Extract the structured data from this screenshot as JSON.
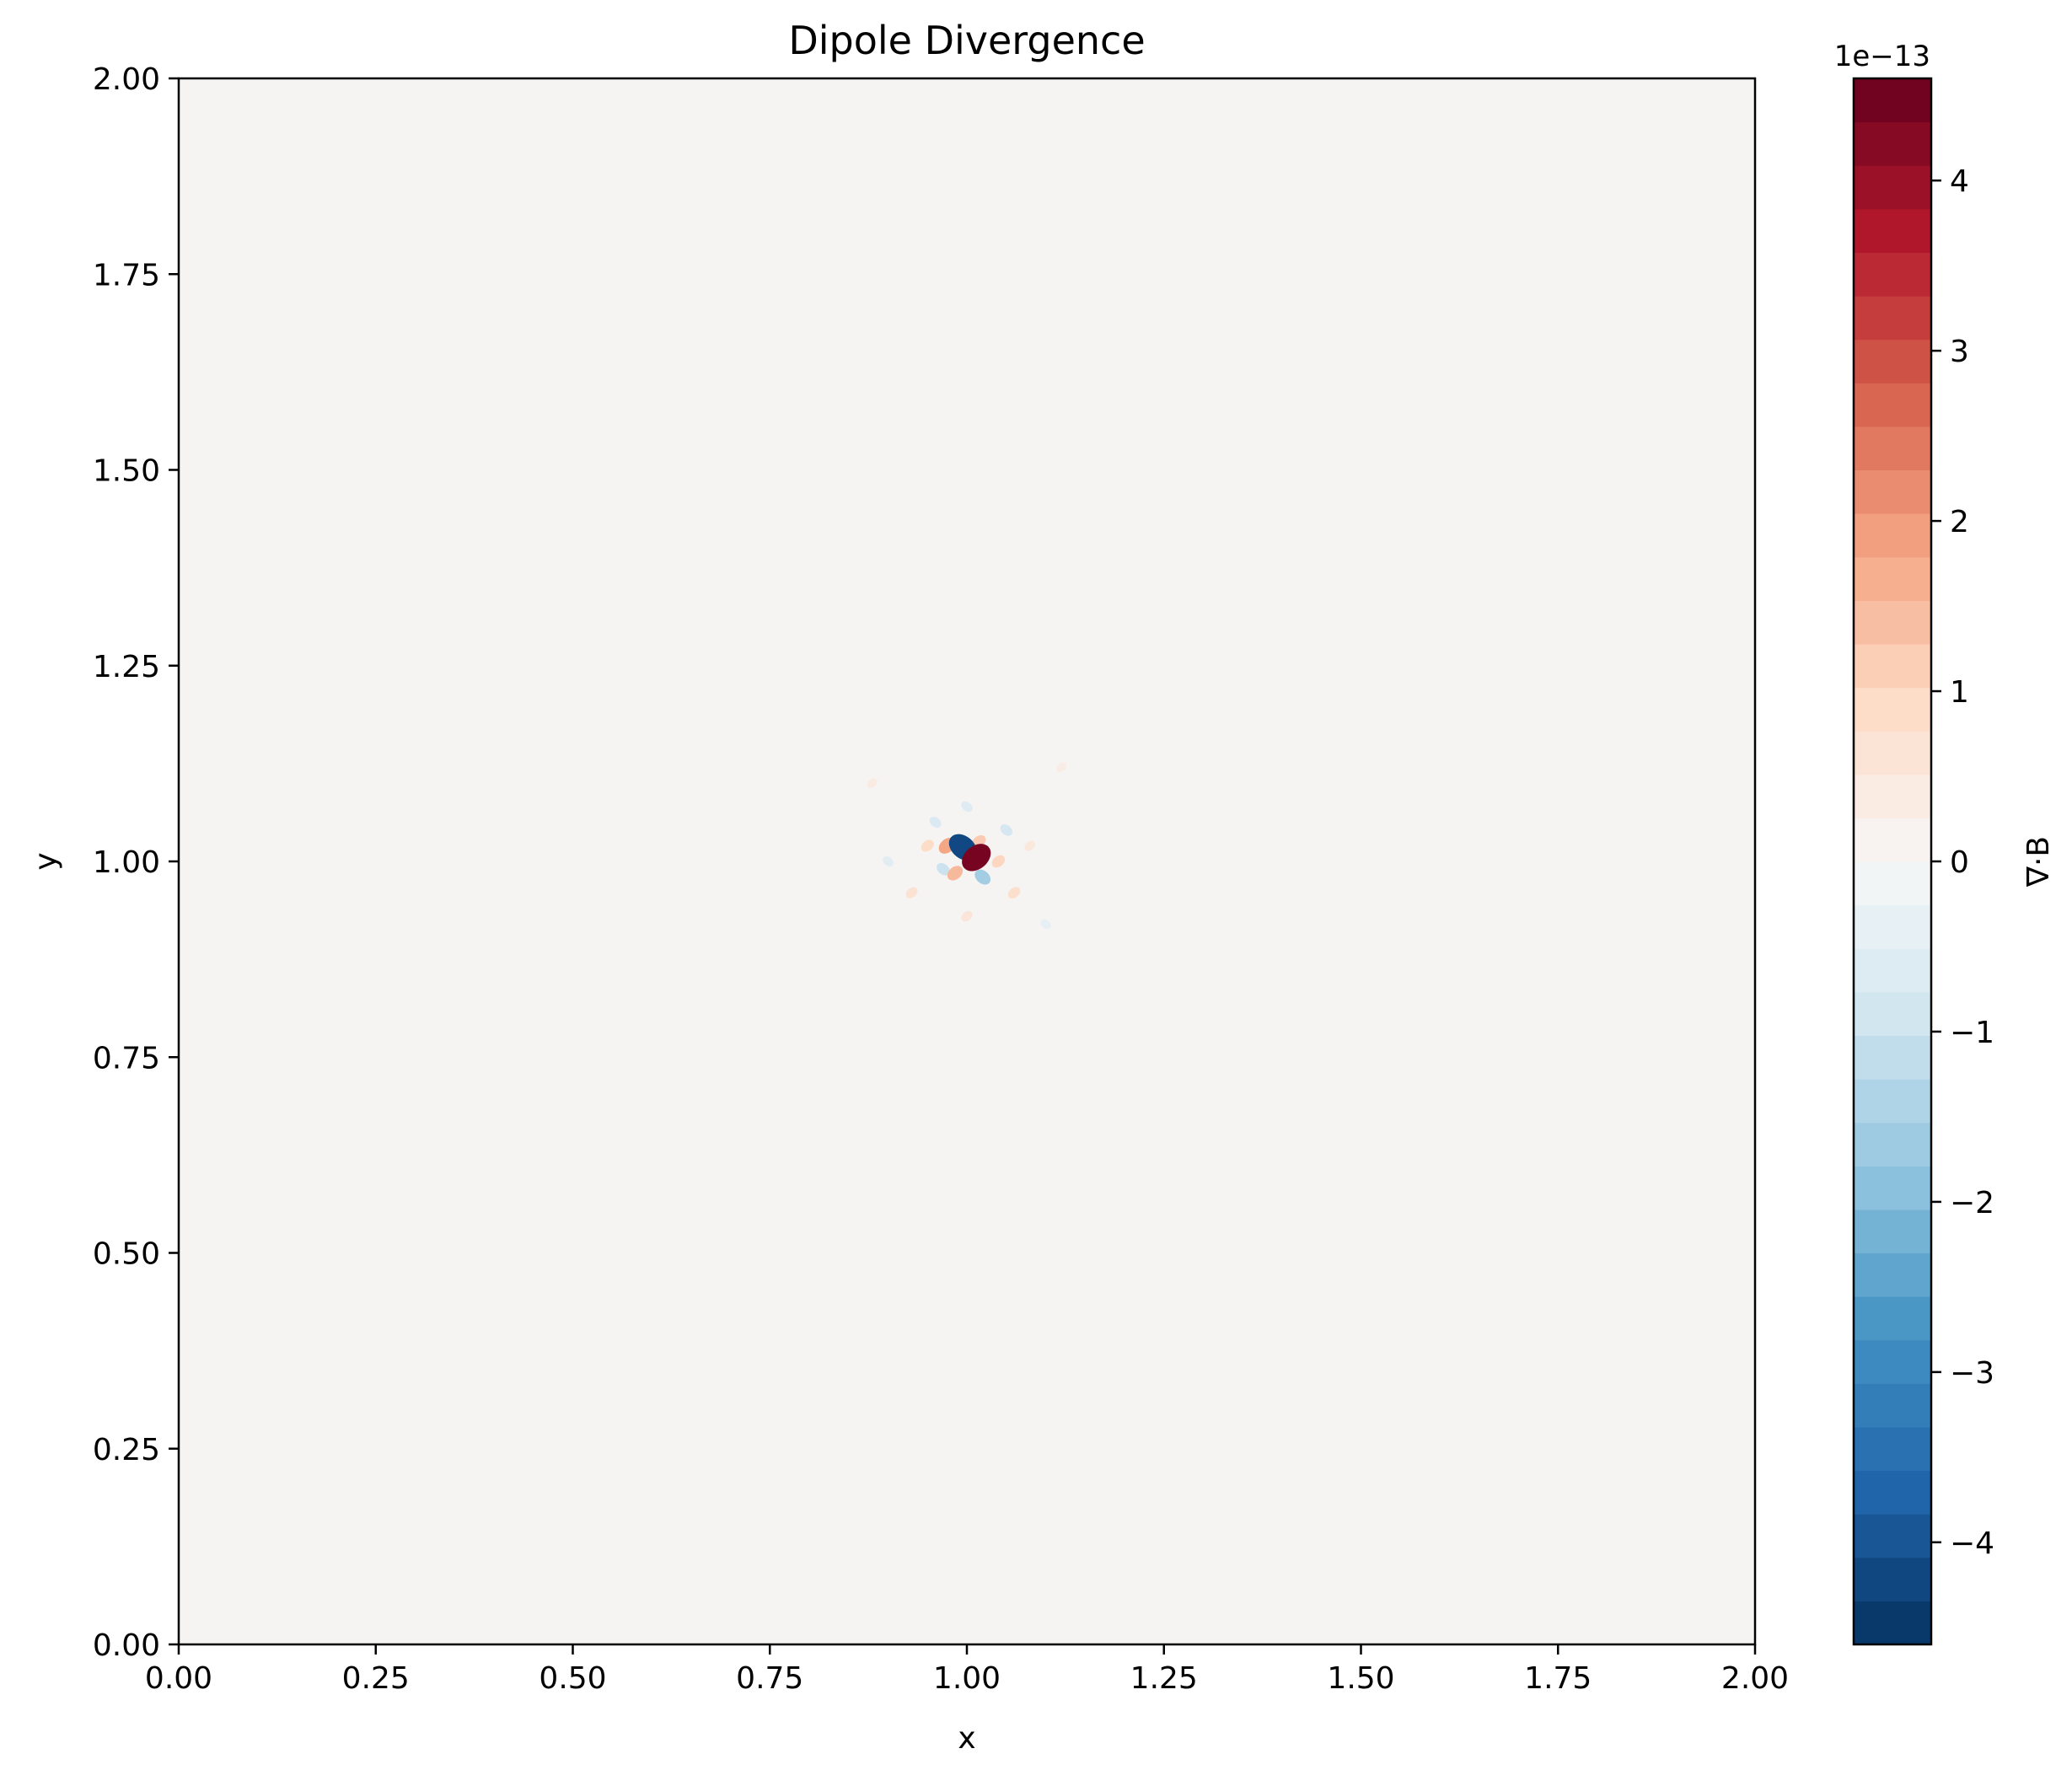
{
  "chart_data": {
    "type": "heatmap",
    "title": "Dipole Divergence",
    "xlabel": "x",
    "ylabel": "y",
    "xlim": [
      0,
      2
    ],
    "ylim": [
      0,
      2
    ],
    "xticks": [
      "0.00",
      "0.25",
      "0.50",
      "0.75",
      "1.00",
      "1.25",
      "1.50",
      "1.75",
      "2.00"
    ],
    "yticks": [
      "0.00",
      "0.25",
      "0.50",
      "0.75",
      "1.00",
      "1.25",
      "1.50",
      "1.75",
      "2.00"
    ],
    "grid": false,
    "colormap": "RdBu_r",
    "background_color": "#f5f4f3",
    "features": [
      {
        "x": 1.012,
        "y": 1.005,
        "value": 4.4
      },
      {
        "x": 0.995,
        "y": 1.018,
        "value": -4.2
      },
      {
        "x": 0.975,
        "y": 1.02,
        "value": 1.8
      },
      {
        "x": 1.02,
        "y": 0.98,
        "value": -1.6
      },
      {
        "x": 0.985,
        "y": 0.985,
        "value": 1.5
      },
      {
        "x": 1.015,
        "y": 1.025,
        "value": 1.2
      },
      {
        "x": 0.97,
        "y": 0.99,
        "value": -1.0
      },
      {
        "x": 1.04,
        "y": 1.0,
        "value": 1.0
      },
      {
        "x": 0.95,
        "y": 1.02,
        "value": 0.9
      },
      {
        "x": 1.05,
        "y": 1.04,
        "value": -0.8
      },
      {
        "x": 0.96,
        "y": 1.05,
        "value": -0.7
      },
      {
        "x": 1.06,
        "y": 0.96,
        "value": 0.8
      },
      {
        "x": 0.93,
        "y": 0.96,
        "value": 0.7
      },
      {
        "x": 1.0,
        "y": 1.07,
        "value": -0.6
      },
      {
        "x": 1.0,
        "y": 0.93,
        "value": 0.6
      },
      {
        "x": 1.08,
        "y": 1.02,
        "value": 0.5
      },
      {
        "x": 0.9,
        "y": 1.0,
        "value": -0.5
      },
      {
        "x": 1.1,
        "y": 0.92,
        "value": -0.4
      },
      {
        "x": 0.88,
        "y": 1.1,
        "value": 0.4
      },
      {
        "x": 1.12,
        "y": 1.12,
        "value": 0.35
      }
    ],
    "colorbar": {
      "label": "∇·B",
      "multiplier": "1e−13",
      "range": [
        -4.6,
        4.6
      ],
      "ticks": [
        -4,
        -3,
        -2,
        -1,
        0,
        1,
        2,
        3,
        4
      ],
      "tick_labels": [
        "−4",
        "−3",
        "−2",
        "−1",
        "0",
        "1",
        "2",
        "3",
        "4"
      ],
      "levels": 36
    }
  }
}
